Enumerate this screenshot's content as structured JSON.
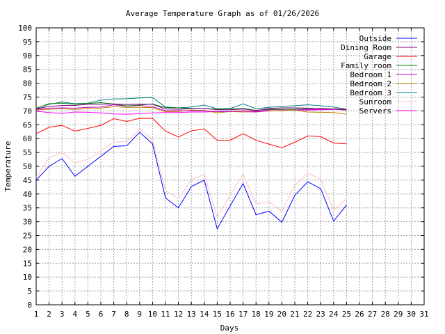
{
  "chart_data": {
    "type": "line",
    "title": "Average Temperature Graph as of 01/26/2026",
    "xlabel": "Days",
    "ylabel": "Temperature",
    "xlim": [
      1,
      31
    ],
    "ylim": [
      0,
      100
    ],
    "x_ticks": [
      1,
      2,
      3,
      4,
      5,
      6,
      7,
      8,
      9,
      10,
      11,
      12,
      13,
      14,
      15,
      16,
      17,
      18,
      19,
      20,
      21,
      22,
      23,
      24,
      25,
      26,
      27,
      28,
      29,
      30,
      31
    ],
    "y_ticks": [
      0,
      5,
      10,
      15,
      20,
      25,
      30,
      35,
      40,
      45,
      50,
      55,
      60,
      65,
      70,
      75,
      80,
      85,
      90,
      95,
      100
    ],
    "grid": true,
    "legend_position": "top-right",
    "x": [
      1,
      2,
      3,
      4,
      5,
      6,
      7,
      8,
      9,
      10,
      11,
      12,
      13,
      14,
      15,
      16,
      17,
      18,
      19,
      20,
      21,
      22,
      23,
      24,
      25
    ],
    "series": [
      {
        "name": "Outside",
        "color": "#0000ff",
        "values": [
          45.0,
          50.0,
          52.8,
          46.4,
          50.0,
          53.6,
          57.2,
          57.4,
          62.3,
          58.1,
          38.6,
          35.0,
          42.7,
          45.0,
          27.4,
          35.7,
          43.8,
          32.5,
          33.8,
          29.8,
          39.5,
          44.4,
          41.9,
          30.2,
          36.0
        ]
      },
      {
        "name": "Dining Room",
        "color": "#800080",
        "values": [
          70.8,
          71.6,
          72.0,
          72.0,
          72.4,
          72.4,
          72.5,
          72.3,
          72.4,
          72.4,
          70.7,
          70.6,
          70.8,
          70.9,
          70.4,
          70.4,
          70.7,
          70.1,
          70.9,
          71.1,
          71.1,
          71.0,
          70.8,
          70.7,
          70.6
        ]
      },
      {
        "name": "Garage",
        "color": "#ff0000",
        "values": [
          61.8,
          64.1,
          64.8,
          62.7,
          63.7,
          64.8,
          67.2,
          66.2,
          67.3,
          67.3,
          62.7,
          60.6,
          62.8,
          63.5,
          59.4,
          59.4,
          61.8,
          59.4,
          58.0,
          56.7,
          58.7,
          61.0,
          60.7,
          58.4,
          58.1
        ]
      },
      {
        "name": "Family room",
        "color": "#008000",
        "values": [
          70.9,
          72.6,
          72.8,
          72.4,
          72.7,
          73.0,
          72.5,
          71.8,
          72.1,
          72.5,
          71.2,
          71.1,
          70.9,
          70.9,
          70.6,
          70.7,
          70.9,
          70.2,
          70.6,
          70.6,
          70.6,
          70.8,
          70.9,
          70.7,
          70.5
        ]
      },
      {
        "name": "Bedroom 1",
        "color": "#c000c0",
        "values": [
          70.6,
          71.0,
          71.1,
          71.0,
          71.3,
          71.4,
          72.2,
          71.7,
          72.0,
          71.5,
          70.1,
          70.1,
          70.0,
          70.0,
          69.7,
          69.8,
          70.1,
          69.7,
          70.4,
          70.5,
          70.6,
          70.5,
          70.6,
          70.6,
          70.3
        ]
      },
      {
        "name": "Bedroom 2",
        "color": "#c08000",
        "values": [
          70.4,
          70.6,
          70.8,
          70.5,
          70.8,
          71.0,
          71.5,
          71.3,
          71.3,
          71.2,
          69.7,
          69.8,
          70.3,
          70.2,
          69.3,
          69.8,
          69.6,
          69.9,
          70.1,
          70.1,
          70.3,
          69.6,
          69.5,
          69.4,
          68.8
        ]
      },
      {
        "name": "Bedroom 3",
        "color": "#008080",
        "values": [
          71.0,
          72.4,
          73.2,
          72.6,
          72.8,
          73.9,
          74.3,
          74.4,
          74.7,
          74.8,
          71.4,
          71.1,
          71.4,
          72.1,
          70.8,
          70.9,
          72.5,
          70.8,
          71.3,
          71.6,
          71.9,
          72.2,
          71.9,
          71.4,
          70.6
        ]
      },
      {
        "name": "Sunroom",
        "color": "#ffc0cb",
        "values": [
          46.0,
          53.0,
          55.1,
          51.2,
          52.5,
          55.5,
          58.8,
          58.9,
          63.4,
          59.7,
          41.2,
          38.3,
          45.1,
          47.2,
          31.6,
          39.5,
          47.2,
          36.4,
          37.3,
          33.6,
          43.1,
          47.6,
          45.3,
          34.2,
          38.2
        ]
      },
      {
        "name": "Servers",
        "color": "#ff00ff",
        "values": [
          69.9,
          69.4,
          69.1,
          69.6,
          69.5,
          69.3,
          68.9,
          68.8,
          69.0,
          69.3,
          69.4,
          69.4,
          69.6,
          69.6,
          69.8,
          69.8,
          69.7,
          69.6,
          70.0,
          70.2,
          70.3,
          70.3,
          70.4,
          70.5,
          70.6
        ]
      }
    ]
  }
}
